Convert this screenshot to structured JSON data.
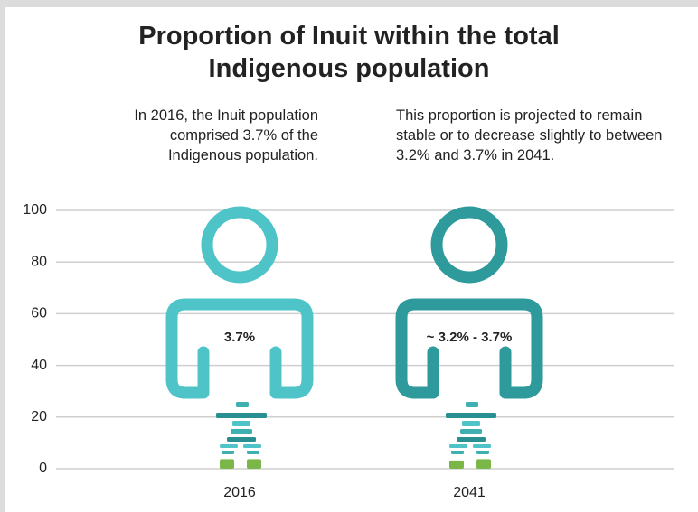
{
  "chart_data": {
    "type": "icon",
    "title": "Proportion of Inuit within the total Indigenous population",
    "annotations": [
      "In 2016, the Inuit population comprised 3.7% of the Indigenous population.",
      "This proportion is projected to remain stable or to decrease slightly to between 3.2% and 3.7% in 2041."
    ],
    "categories": [
      "2016",
      "2041"
    ],
    "values": [
      3.7,
      3.7
    ],
    "range_low": [
      null,
      3.2
    ],
    "value_labels": [
      "3.7%",
      "~ 3.2% - 3.7%"
    ],
    "icon_colors": [
      "#4fc4c8",
      "#2e9a9b"
    ],
    "color": "#7ab648",
    "ylim": [
      0,
      100
    ],
    "yticks": [
      0,
      20,
      40,
      60,
      80,
      100
    ],
    "grid": true
  }
}
